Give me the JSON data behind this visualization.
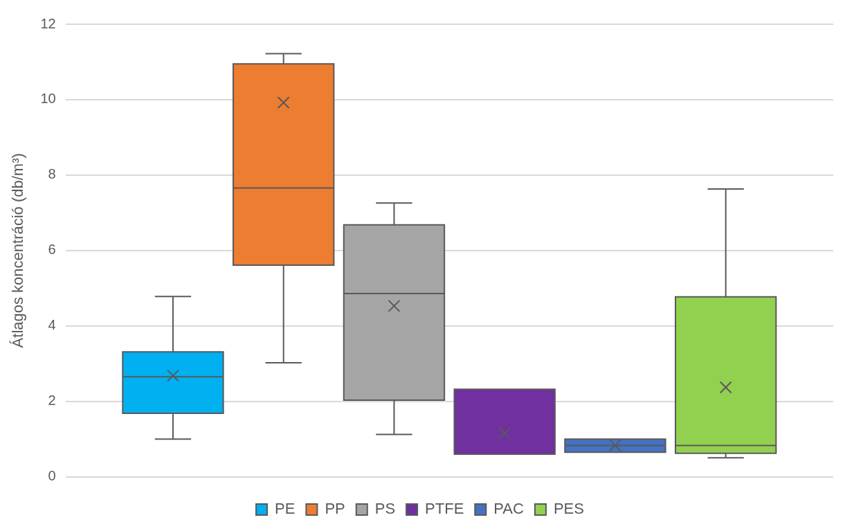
{
  "chart_data": {
    "type": "box",
    "ylabel": "Átlagos koncentráció (db/m³)",
    "categories": [
      null
    ],
    "series": [
      {
        "name": "PE",
        "color": "#00b0f0",
        "boxes": [
          {
            "low": 1.0,
            "q1": 1.68,
            "median": 2.65,
            "q3": 3.31,
            "high": 4.78,
            "mean": 2.68
          }
        ]
      },
      {
        "name": "PP",
        "color": "#ed7d31",
        "boxes": [
          {
            "low": 3.02,
            "q1": 5.61,
            "median": 7.66,
            "q3": 10.95,
            "high": 11.22,
            "mean": 9.92
          }
        ]
      },
      {
        "name": "PS",
        "color": "#a5a5a5",
        "boxes": [
          {
            "low": 1.12,
            "q1": 2.03,
            "median": 4.86,
            "q3": 6.68,
            "high": 7.26,
            "mean": 4.53
          }
        ]
      },
      {
        "name": "PTFE",
        "color": "#7030a0",
        "boxes": [
          {
            "low": 0.6,
            "q1": 0.6,
            "median": 0.6,
            "q3": 2.32,
            "high": 2.32,
            "mean": 1.16
          }
        ]
      },
      {
        "name": "PAC",
        "color": "#4472c4",
        "boxes": [
          {
            "low": 0.65,
            "q1": 0.65,
            "median": 0.83,
            "q3": 1.0,
            "high": 1.0,
            "mean": 0.83
          }
        ]
      },
      {
        "name": "PES",
        "color": "#92d050",
        "boxes": [
          {
            "low": 0.5,
            "q1": 0.62,
            "median": 0.83,
            "q3": 4.77,
            "high": 7.63,
            "mean": 2.37
          }
        ]
      }
    ],
    "ylim": [
      0,
      12
    ],
    "yticks": [
      0,
      2,
      4,
      6,
      8,
      10,
      12
    ],
    "grid": "y",
    "legend": "bottom",
    "marker": "cross"
  }
}
